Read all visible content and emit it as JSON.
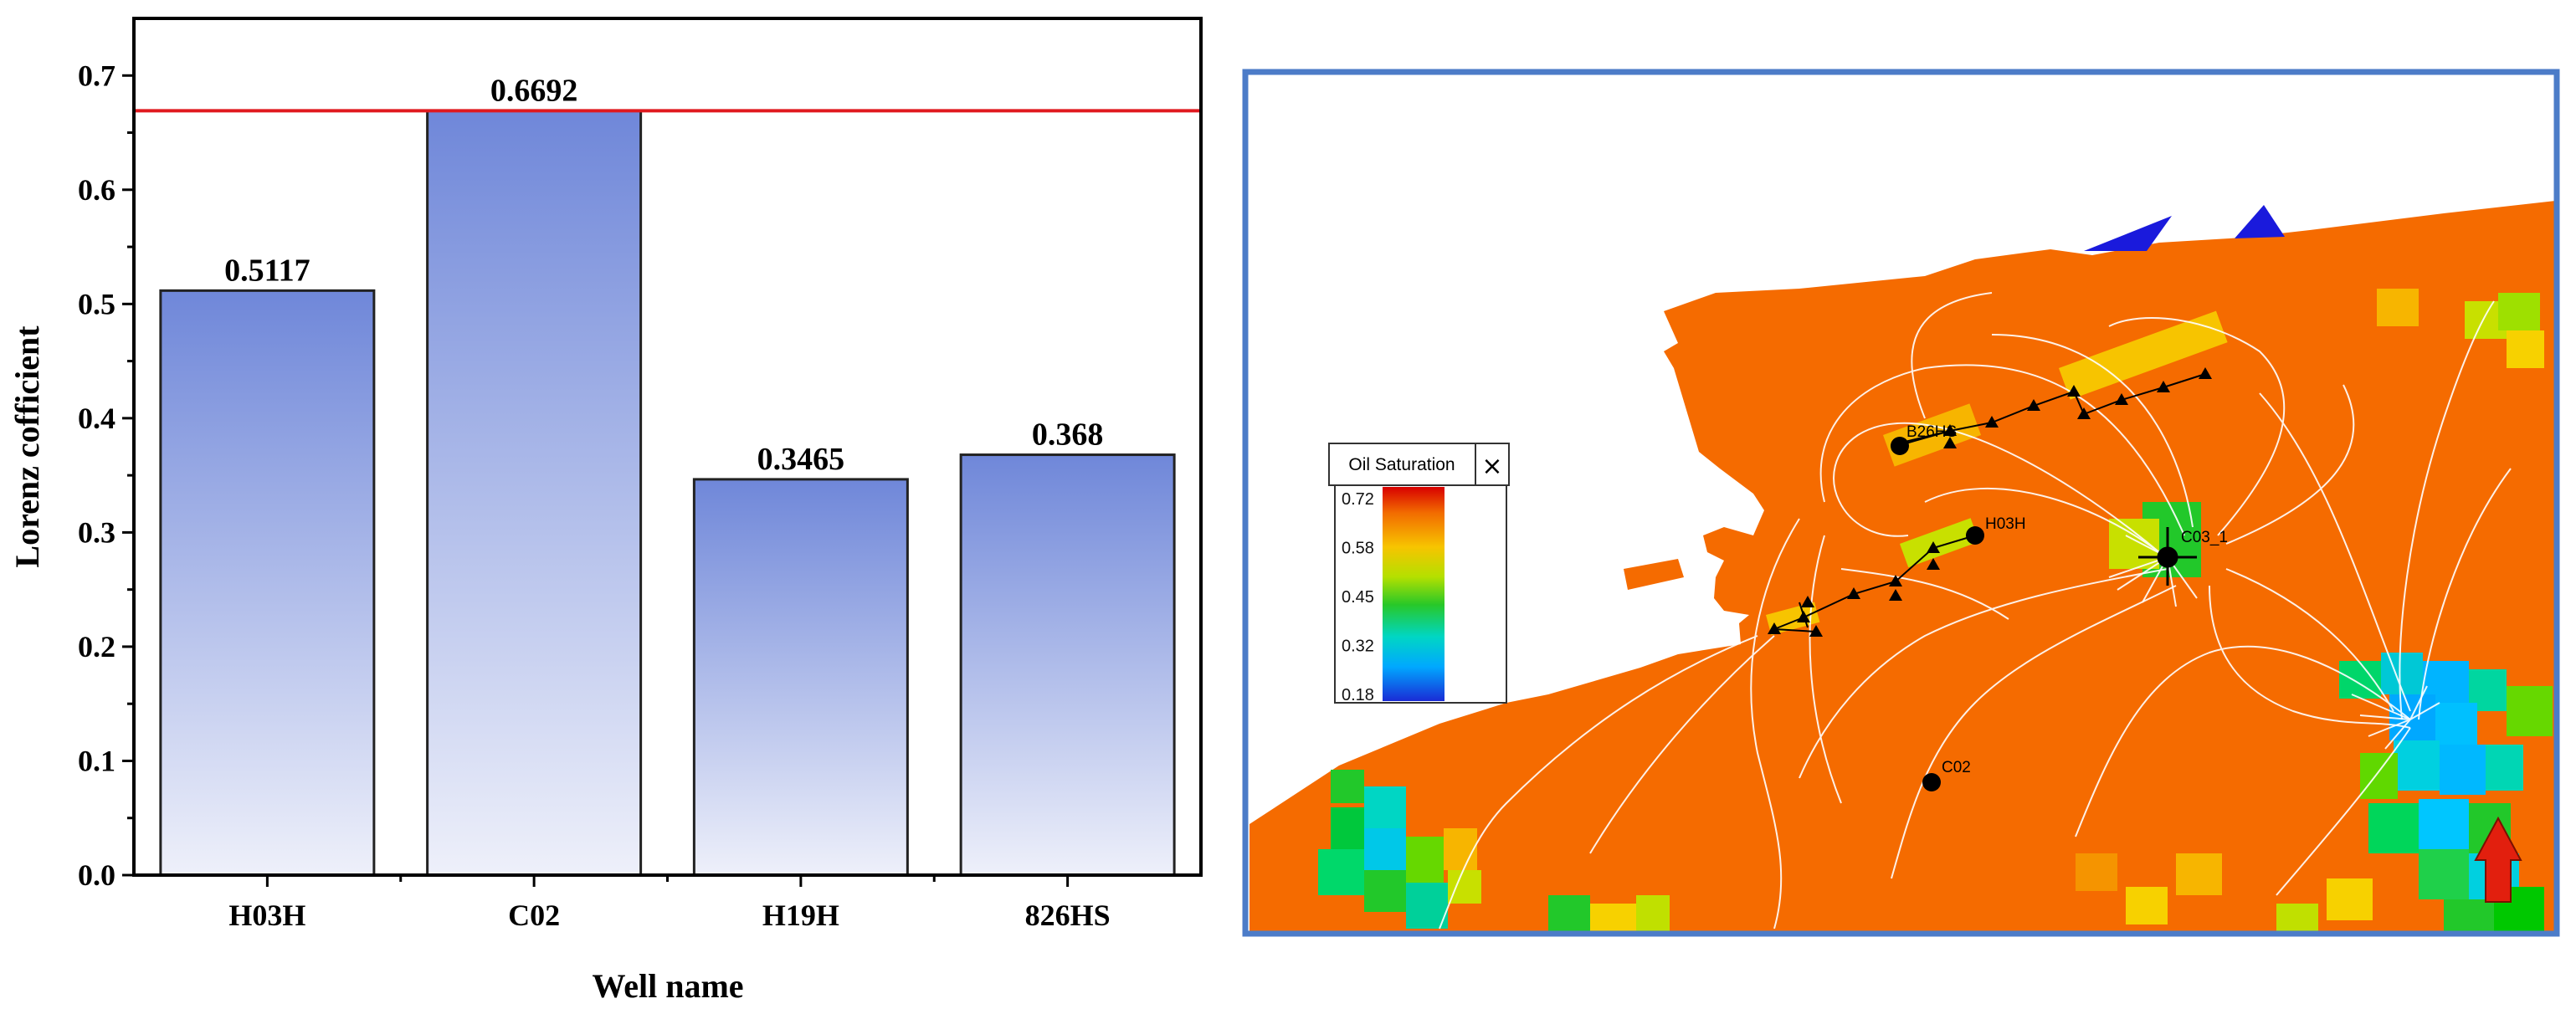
{
  "chart_data": {
    "type": "bar",
    "categories": [
      "H03H",
      "C02",
      "H19H",
      "826HS"
    ],
    "values": [
      0.5117,
      0.6692,
      0.3465,
      0.368
    ],
    "value_labels": [
      "0.5117",
      "0.6692",
      "0.3465",
      "0.368"
    ],
    "ylabel": "Lorenz cofficient",
    "xlabel": "Well name",
    "ylim": [
      0,
      0.75
    ],
    "yticks": [
      "0.0",
      "0.1",
      "0.2",
      "0.3",
      "0.4",
      "0.5",
      "0.6",
      "0.7"
    ],
    "reference_line": 0.6692,
    "reference_line_color": "#e0191f",
    "bar_gradient": [
      "#6f87d9",
      "#eef0fa"
    ],
    "grid": false
  },
  "map_panel": {
    "frame_color": "#4c7cc8",
    "field_color": "#f56b00",
    "legend": {
      "title": "Oil Saturation",
      "close_symbol": "×",
      "ticks": [
        "0.72",
        "0.58",
        "0.45",
        "0.32",
        "0.18"
      ]
    },
    "wells": [
      "B26HS",
      "H03H",
      "C03_1",
      "C02"
    ]
  }
}
